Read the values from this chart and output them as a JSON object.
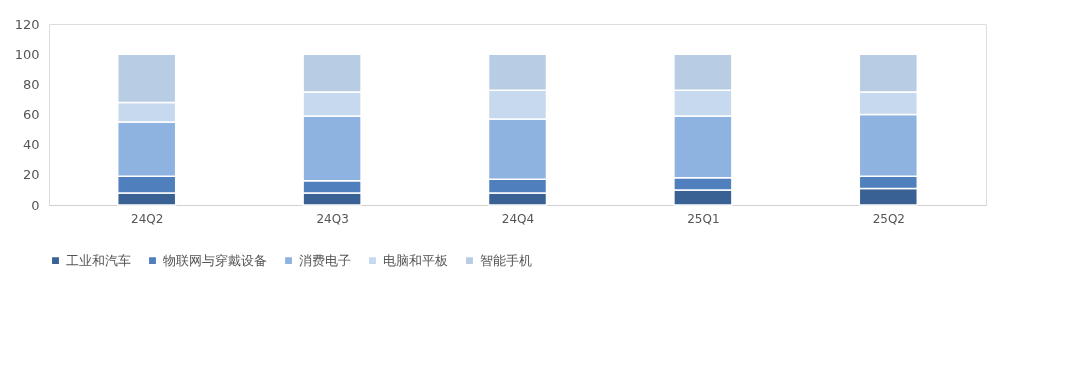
{
  "chart_data": {
    "type": "bar",
    "stacked": true,
    "categories": [
      "24Q2",
      "24Q3",
      "24Q4",
      "25Q1",
      "25Q2"
    ],
    "series": [
      {
        "name": "工业和汽车",
        "color": "#3a6194",
        "values": [
          8,
          8,
          8,
          10,
          11
        ]
      },
      {
        "name": "物联网与穿戴设备",
        "color": "#4f7fbd",
        "values": [
          11,
          8,
          9,
          8,
          8
        ]
      },
      {
        "name": "消费电子",
        "color": "#8fb3e0",
        "values": [
          36,
          43,
          40,
          41,
          41
        ]
      },
      {
        "name": "电脑和平板",
        "color": "#c6d9ef",
        "values": [
          13,
          16,
          19,
          17,
          15
        ]
      },
      {
        "name": "智能手机",
        "color": "#b8cce4",
        "values": [
          32,
          25,
          24,
          24,
          25
        ]
      }
    ],
    "ylim": [
      0,
      120
    ],
    "yticks": [
      0,
      20,
      40,
      60,
      80,
      100,
      120
    ],
    "grid": false,
    "legend": "bottom"
  }
}
